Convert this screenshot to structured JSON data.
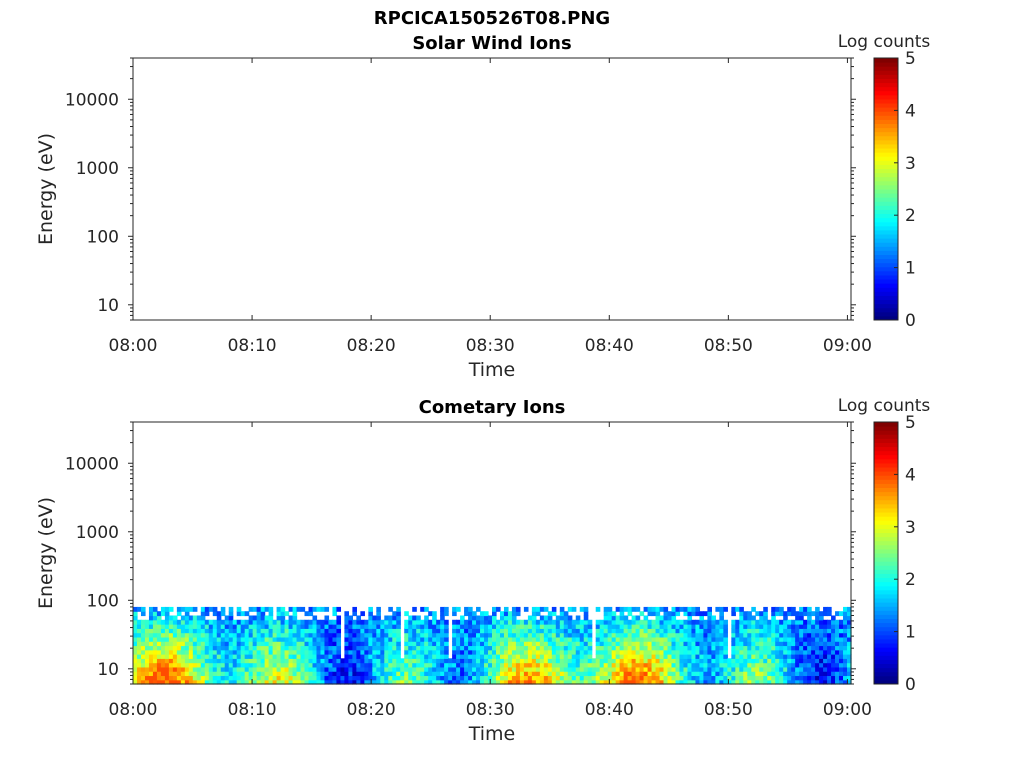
{
  "figure_title": "RPCICA150526T08.PNG",
  "colors": {
    "axis": "#262626",
    "background": "#ffffff",
    "colormap": "jet"
  },
  "chart_data": [
    {
      "type": "heatmap",
      "title": "Solar Wind Ions",
      "xlabel": "Time",
      "ylabel": "Energy (eV)",
      "x_ticks": [
        "08:00",
        "08:10",
        "08:20",
        "08:30",
        "08:40",
        "08:50",
        "09:00"
      ],
      "y_ticks": [
        "10",
        "100",
        "1000",
        "10000"
      ],
      "y_scale": "log",
      "xlim": [
        "08:00",
        "09:00"
      ],
      "ylim": [
        6,
        40000
      ],
      "colorbar": {
        "label": "Log counts",
        "ticks": [
          "0",
          "1",
          "2",
          "3",
          "4",
          "5"
        ],
        "range": [
          0,
          5
        ]
      },
      "data_present": false,
      "grid": false
    },
    {
      "type": "heatmap",
      "title": "Cometary Ions",
      "xlabel": "Time",
      "ylabel": "Energy (eV)",
      "x_ticks": [
        "08:00",
        "08:10",
        "08:20",
        "08:30",
        "08:40",
        "08:50",
        "09:00"
      ],
      "y_ticks": [
        "10",
        "100",
        "1000",
        "10000"
      ],
      "y_scale": "log",
      "xlim": [
        "08:00",
        "09:00"
      ],
      "ylim": [
        6,
        40000
      ],
      "colorbar": {
        "label": "Log counts",
        "ticks": [
          "0",
          "1",
          "2",
          "3",
          "4",
          "5"
        ],
        "range": [
          0,
          5
        ]
      },
      "data_present": true,
      "energy_range_eV": [
        6,
        80
      ],
      "peak_log_counts": 4,
      "grid": false
    }
  ]
}
